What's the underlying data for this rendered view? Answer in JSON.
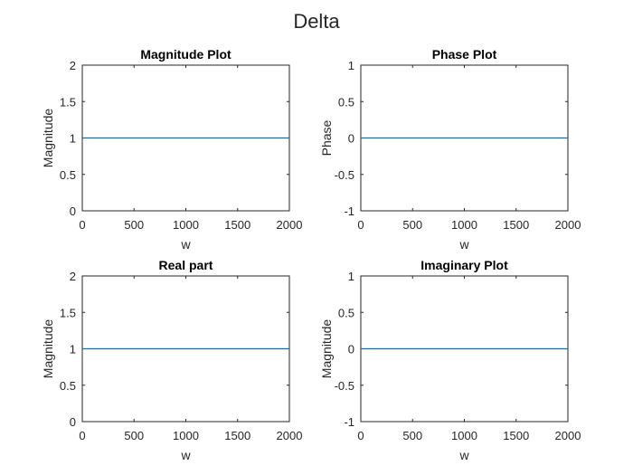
{
  "figure_title": "Delta",
  "colors": {
    "line": "#0072BD",
    "axes": "#262626"
  },
  "chart_data": [
    {
      "type": "line",
      "title": "Magnitude Plot",
      "xlabel": "w",
      "ylabel": "Magnitude",
      "xlim": [
        0,
        2000
      ],
      "ylim": [
        0,
        2
      ],
      "xticks": [
        0,
        500,
        1000,
        1500,
        2000
      ],
      "yticks": [
        0,
        0.5,
        1,
        1.5,
        2
      ],
      "xtick_labels": [
        "0",
        "500",
        "1000",
        "1500",
        "2000"
      ],
      "ytick_labels": [
        "0",
        "0.5",
        "1",
        "1.5",
        "2"
      ],
      "grid": false,
      "series": [
        {
          "x": [
            0,
            2000
          ],
          "y": [
            1,
            1
          ]
        }
      ]
    },
    {
      "type": "line",
      "title": "Phase Plot",
      "xlabel": "w",
      "ylabel": "Phase",
      "xlim": [
        0,
        2000
      ],
      "ylim": [
        -1,
        1
      ],
      "xticks": [
        0,
        500,
        1000,
        1500,
        2000
      ],
      "yticks": [
        -1,
        -0.5,
        0,
        0.5,
        1
      ],
      "xtick_labels": [
        "0",
        "500",
        "1000",
        "1500",
        "2000"
      ],
      "ytick_labels": [
        "-1",
        "-0.5",
        "0",
        "0.5",
        "1"
      ],
      "grid": false,
      "series": [
        {
          "x": [
            0,
            2000
          ],
          "y": [
            0,
            0
          ]
        }
      ]
    },
    {
      "type": "line",
      "title": "Real part",
      "xlabel": "w",
      "ylabel": "Magnitude",
      "xlim": [
        0,
        2000
      ],
      "ylim": [
        0,
        2
      ],
      "xticks": [
        0,
        500,
        1000,
        1500,
        2000
      ],
      "yticks": [
        0,
        0.5,
        1,
        1.5,
        2
      ],
      "xtick_labels": [
        "0",
        "500",
        "1000",
        "1500",
        "2000"
      ],
      "ytick_labels": [
        "0",
        "0.5",
        "1",
        "1.5",
        "2"
      ],
      "grid": false,
      "series": [
        {
          "x": [
            0,
            2000
          ],
          "y": [
            1,
            1
          ]
        }
      ]
    },
    {
      "type": "line",
      "title": "Imaginary Plot",
      "xlabel": "w",
      "ylabel": "Magnitude",
      "xlim": [
        0,
        2000
      ],
      "ylim": [
        -1,
        1
      ],
      "xticks": [
        0,
        500,
        1000,
        1500,
        2000
      ],
      "yticks": [
        -1,
        -0.5,
        0,
        0.5,
        1
      ],
      "xtick_labels": [
        "0",
        "500",
        "1000",
        "1500",
        "2000"
      ],
      "ytick_labels": [
        "-1",
        "-0.5",
        "0",
        "0.5",
        "1"
      ],
      "grid": false,
      "series": [
        {
          "x": [
            0,
            2000
          ],
          "y": [
            0,
            0
          ]
        }
      ]
    }
  ]
}
